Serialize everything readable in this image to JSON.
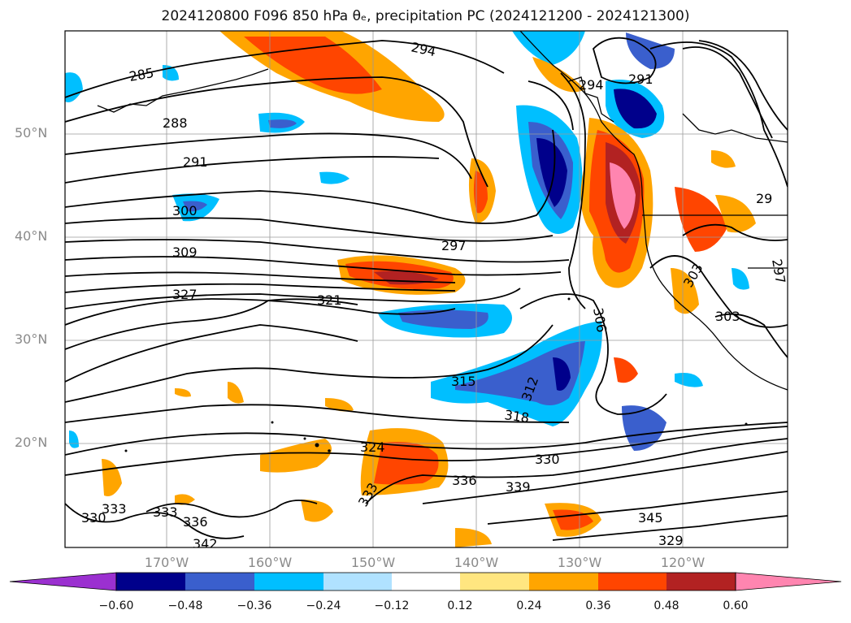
{
  "title": "2024120800 F096 850 hPa θₑ, precipitation PC (2024121200 - 2024121300)",
  "lat_labels": [
    "50°N",
    "40°N",
    "30°N",
    "20°N"
  ],
  "lon_labels": [
    "170°W",
    "160°W",
    "150°W",
    "140°W",
    "130°W",
    "120°W"
  ],
  "contour_labels": [
    "294",
    "285",
    "288",
    "291",
    "300",
    "309",
    "327",
    "321",
    "297",
    "291",
    "294",
    "306",
    "303",
    "303",
    "29",
    "297",
    "315",
    "312",
    "318",
    "324",
    "330",
    "336",
    "339",
    "333",
    "333",
    "333",
    "336",
    "330",
    "342",
    "345",
    "329"
  ],
  "colorbar": {
    "ticks": [
      "−0.60",
      "−0.48",
      "−0.36",
      "−0.24",
      "−0.12",
      "0.12",
      "0.24",
      "0.36",
      "0.48",
      "0.60"
    ],
    "colors": [
      "#9b30d0",
      "#00008b",
      "#3a5fcd",
      "#00bfff",
      "#b0e2ff",
      "#ffffff",
      "#ffe680",
      "#ffa500",
      "#ff4500",
      "#b22222",
      "#ff85b0"
    ]
  },
  "field_colors": {
    "coastline": "#000000",
    "contour": "#000000",
    "gridline": "#9a9a9a"
  }
}
